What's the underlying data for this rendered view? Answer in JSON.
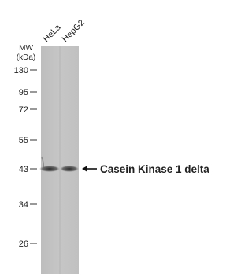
{
  "figure": {
    "lanes": [
      "HeLa",
      "HepG2"
    ],
    "mw_label": [
      "MW",
      "(kDa)"
    ],
    "markers": [
      "130",
      "95",
      "72",
      "55",
      "43",
      "34",
      "26"
    ],
    "band_label": "Casein Kinase 1 delta"
  }
}
